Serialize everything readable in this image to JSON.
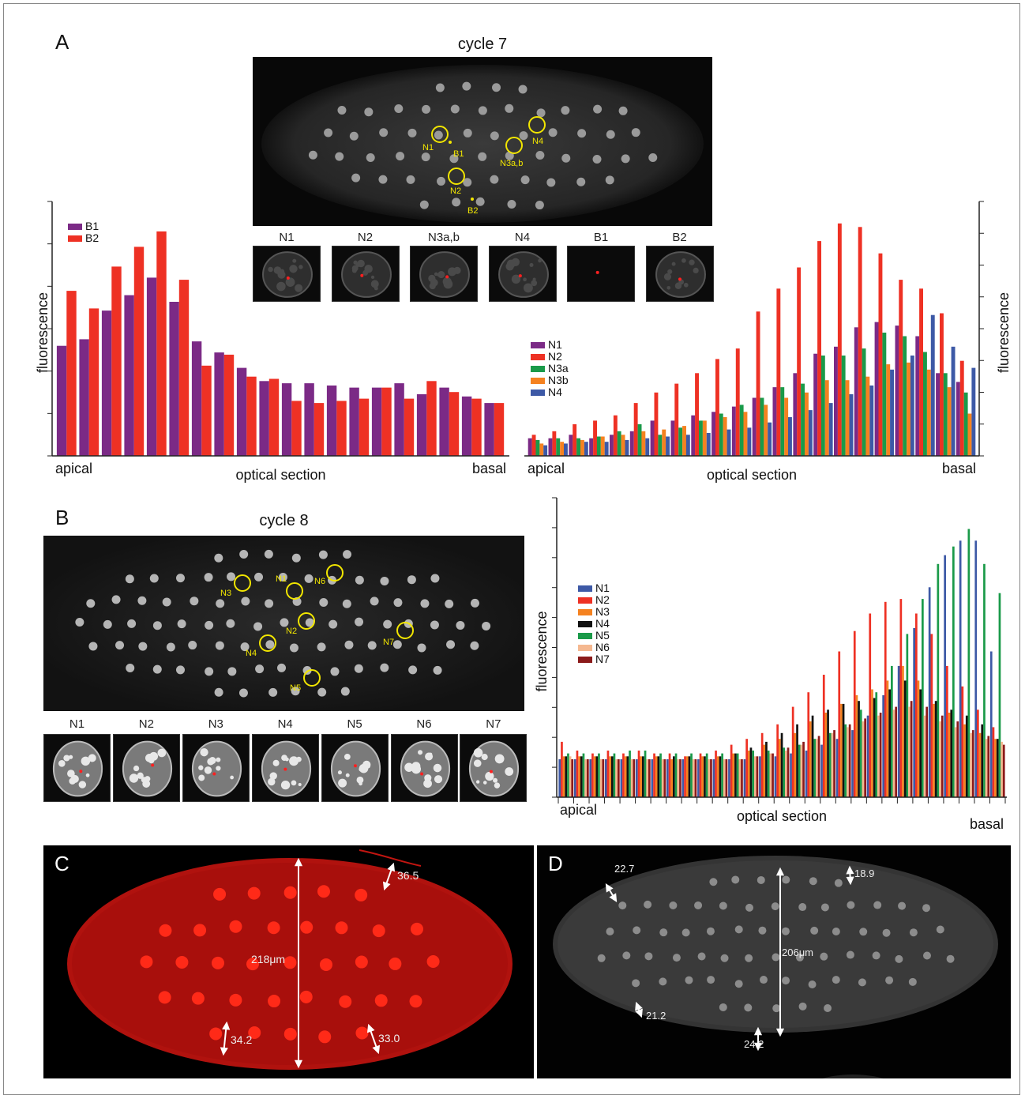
{
  "panel_labels": {
    "A": "A",
    "B": "B",
    "C": "C",
    "D": "D"
  },
  "panel_a": {
    "title": "cycle 7",
    "annotations": [
      "N1",
      "B1",
      "N4",
      "N3a,b",
      "N2",
      "B2"
    ],
    "thumbnails": [
      "N1",
      "N2",
      "N3a,b",
      "N4",
      "B1",
      "B2"
    ]
  },
  "panel_b": {
    "title": "cycle 8",
    "annotations": [
      "N3",
      "N1",
      "N6",
      "N2",
      "N7",
      "N4",
      "N5"
    ],
    "thumbnails": [
      "N1",
      "N2",
      "N3",
      "N4",
      "N5",
      "N6",
      "N7"
    ]
  },
  "panel_c": {
    "scale_labels": [
      "36.5",
      "218μm",
      "34.2",
      "33.0"
    ],
    "color": "#e2231a"
  },
  "panel_d": {
    "scale_labels": [
      "22.7",
      "18.9",
      "206μm",
      "21.2",
      "24.2"
    ]
  },
  "chart_data": [
    {
      "type": "bar",
      "id": "A-left",
      "ylabel": "fluorescence",
      "xlabel": "optical section",
      "x_start_label": "apical",
      "x_end_label": "basal",
      "legend": "top-left",
      "series": [
        {
          "name": "B1",
          "color": "#7b2a86",
          "values": [
            50,
            53,
            66,
            73,
            81,
            70,
            52,
            47,
            40,
            34,
            33,
            33,
            32,
            31,
            31,
            33,
            28,
            31,
            27,
            24
          ]
        },
        {
          "name": "B2",
          "color": "#ee3124",
          "values": [
            75,
            67,
            86,
            95,
            102,
            80,
            41,
            46,
            36,
            35,
            25,
            24,
            25,
            26,
            31,
            26,
            34,
            29,
            26,
            24
          ]
        }
      ]
    },
    {
      "type": "bar",
      "id": "A-right",
      "ylabel": "fluorescence",
      "xlabel": "optical section",
      "x_start_label": "apical",
      "x_end_label": "basal",
      "legend": "left",
      "series": [
        {
          "name": "N1",
          "color": "#7b2a86",
          "values": [
            10,
            10,
            12,
            10,
            12,
            14,
            20,
            20,
            23,
            25,
            28,
            33,
            39,
            47,
            58,
            62,
            73,
            76,
            74,
            68,
            47,
            42
          ]
        },
        {
          "name": "N2",
          "color": "#ee3124",
          "values": [
            12,
            14,
            18,
            20,
            23,
            30,
            36,
            41,
            47,
            55,
            61,
            82,
            95,
            107,
            122,
            132,
            130,
            115,
            100,
            95,
            81,
            54
          ]
        },
        {
          "name": "N3a",
          "color": "#1a9a49",
          "values": [
            9,
            10,
            10,
            11,
            14,
            18,
            12,
            16,
            20,
            24,
            29,
            33,
            39,
            41,
            57,
            57,
            61,
            70,
            68,
            59,
            47,
            36
          ]
        },
        {
          "name": "N3b",
          "color": "#f58220",
          "values": [
            7,
            8,
            9,
            11,
            12,
            14,
            15,
            17,
            20,
            22,
            25,
            29,
            33,
            36,
            43,
            43,
            45,
            52,
            53,
            49,
            39,
            24
          ]
        },
        {
          "name": "N4",
          "color": "#3d59a6",
          "values": [
            6,
            7,
            8,
            8,
            9,
            10,
            11,
            12,
            13,
            15,
            16,
            19,
            22,
            26,
            30,
            35,
            40,
            49,
            57,
            80,
            62,
            50
          ]
        }
      ]
    },
    {
      "type": "bar",
      "id": "B",
      "ylabel": "fluorescence",
      "xlabel": "optical section",
      "x_start_label": "apical",
      "x_end_label": "basal",
      "legend": "left",
      "series": [
        {
          "name": "N1",
          "color": "#3d59a6",
          "values": [
            13,
            13,
            13,
            13,
            13,
            13,
            13,
            13,
            13,
            13,
            13,
            13,
            13,
            14,
            14,
            15,
            16,
            18,
            20,
            23,
            28,
            35,
            45,
            58,
            72,
            83,
            88,
            88,
            50
          ]
        },
        {
          "name": "N2",
          "color": "#ee3124",
          "values": [
            19,
            16,
            15,
            16,
            15,
            16,
            15,
            15,
            14,
            15,
            16,
            18,
            20,
            22,
            25,
            31,
            36,
            42,
            50,
            57,
            63,
            67,
            68,
            63,
            56,
            45,
            38,
            30,
            24
          ]
        },
        {
          "name": "N3",
          "color": "#f58220",
          "values": [
            14,
            14,
            14,
            14,
            14,
            14,
            14,
            13,
            14,
            14,
            14,
            15,
            16,
            18,
            20,
            22,
            26,
            29,
            32,
            35,
            37,
            40,
            45,
            40,
            32,
            29,
            25,
            22,
            20
          ]
        },
        {
          "name": "N4",
          "color": "#111111",
          "values": [
            14,
            14,
            14,
            14,
            14,
            14,
            14,
            14,
            14,
            14,
            14,
            15,
            17,
            19,
            22,
            25,
            28,
            30,
            32,
            33,
            34,
            37,
            40,
            37,
            33,
            30,
            28,
            25,
            20
          ]
        },
        {
          "name": "N5",
          "color": "#1a9a49",
          "values": [
            15,
            15,
            15,
            15,
            16,
            16,
            15,
            15,
            15,
            15,
            15,
            15,
            16,
            16,
            17,
            18,
            20,
            22,
            25,
            30,
            36,
            45,
            56,
            68,
            80,
            86,
            92,
            80,
            70
          ]
        },
        {
          "name": "N6",
          "color": "#f5b890",
          "values": [
            14,
            13,
            13,
            13,
            13,
            13,
            13,
            13,
            13,
            13,
            13,
            13,
            14,
            15,
            16,
            18,
            20,
            22,
            24,
            26,
            28,
            30,
            31,
            28,
            26,
            24,
            22,
            20,
            19
          ]
        },
        {
          "name": "N7",
          "color": "#8b1a1a",
          "values": [
            13,
            13,
            13,
            13,
            13,
            13,
            13,
            13,
            13,
            13,
            13,
            13,
            14,
            15,
            17,
            19,
            21,
            23,
            25,
            27,
            29,
            31,
            33,
            31,
            28,
            26,
            23,
            21,
            18
          ]
        }
      ]
    }
  ]
}
